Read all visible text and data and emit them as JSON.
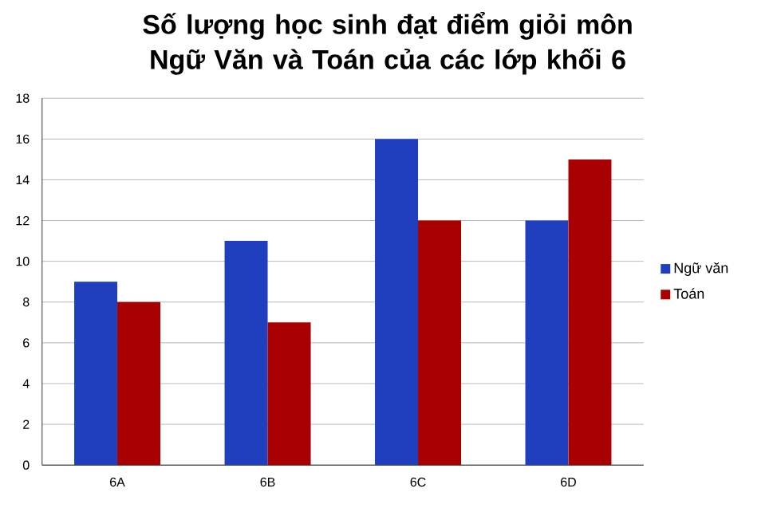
{
  "chart_data": {
    "type": "bar",
    "title": "Số lượng học sinh đạt điểm giỏi môn Ngữ Văn và Toán của các lớp khối 6",
    "categories": [
      "6A",
      "6B",
      "6C",
      "6D"
    ],
    "series": [
      {
        "name": "Ngữ văn",
        "color": "#1f3fbf",
        "values": [
          9,
          11,
          16,
          12
        ]
      },
      {
        "name": "Toán",
        "color": "#a80000",
        "values": [
          8,
          7,
          12,
          15
        ]
      }
    ],
    "ylim": [
      0,
      18
    ],
    "yticks": [
      0,
      2,
      4,
      6,
      8,
      10,
      12,
      14,
      16,
      18
    ],
    "grid": "y",
    "legend": "right"
  }
}
